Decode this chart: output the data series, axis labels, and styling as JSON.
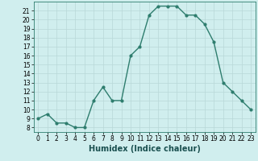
{
  "x": [
    0,
    1,
    2,
    3,
    4,
    5,
    6,
    7,
    8,
    9,
    10,
    11,
    12,
    13,
    14,
    15,
    16,
    17,
    18,
    19,
    20,
    21,
    22,
    23
  ],
  "y": [
    9,
    9.5,
    8.5,
    8.5,
    8,
    8,
    11,
    12.5,
    11,
    11,
    16,
    17,
    20.5,
    21.5,
    21.5,
    21.5,
    20.5,
    20.5,
    19.5,
    17.5,
    13,
    12,
    11,
    10
  ],
  "line_color": "#2e7d6e",
  "marker": "o",
  "marker_size": 2,
  "bg_color": "#d0eeee",
  "grid_color": "#b8d8d8",
  "xlabel": "Humidex (Indice chaleur)",
  "ylim": [
    7.5,
    22
  ],
  "xlim": [
    -0.5,
    23.5
  ],
  "yticks": [
    8,
    9,
    10,
    11,
    12,
    13,
    14,
    15,
    16,
    17,
    18,
    19,
    20,
    21
  ],
  "xticks": [
    0,
    1,
    2,
    3,
    4,
    5,
    6,
    7,
    8,
    9,
    10,
    11,
    12,
    13,
    14,
    15,
    16,
    17,
    18,
    19,
    20,
    21,
    22,
    23
  ],
  "tick_fontsize": 5.5,
  "xlabel_fontsize": 7,
  "line_width": 1.0
}
